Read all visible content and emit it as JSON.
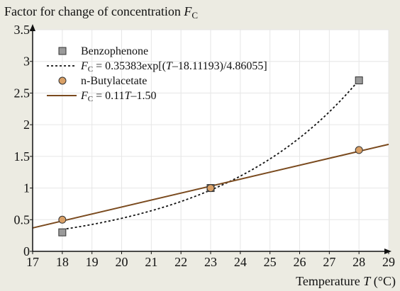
{
  "chart_data": {
    "type": "scatter",
    "title": "",
    "ylabel": "Factor for change of concentration F",
    "ylabel_sub": "C",
    "xlabel": "Temperature T (°C)",
    "xlim": [
      17,
      29
    ],
    "ylim": [
      0,
      3.5
    ],
    "x_ticks": [
      17,
      18,
      19,
      20,
      21,
      22,
      23,
      24,
      25,
      26,
      27,
      28,
      29
    ],
    "y_ticks": [
      0,
      0.5,
      1,
      1.5,
      2,
      2.5,
      3,
      3.5
    ],
    "grid": true,
    "legend_position": "top-left",
    "series": [
      {
        "name": "Benzophenone",
        "kind": "points",
        "marker": "square",
        "color": "#9a9a9a",
        "x": [
          18,
          23,
          28
        ],
        "y": [
          0.3,
          1.0,
          2.7
        ]
      },
      {
        "name": "F_C = 0.35383exp[(T–18.11193)/4.86055]",
        "kind": "fit-curve",
        "style": "dotted",
        "color": "#111111",
        "formula": {
          "a": 0.35383,
          "t0": 18.11193,
          "k": 4.86055
        },
        "x_range": [
          18,
          28
        ]
      },
      {
        "name": "n-Butylacetate",
        "kind": "points",
        "marker": "circle",
        "color": "#d9a066",
        "x": [
          18,
          23,
          28
        ],
        "y": [
          0.5,
          1.0,
          1.6
        ]
      },
      {
        "name": "F_C = 0.11T–1.50",
        "kind": "fit-line",
        "style": "solid",
        "color": "#7a4a1e",
        "formula": {
          "slope": 0.11,
          "intercept": -1.5
        },
        "x_range": [
          17,
          29
        ]
      }
    ],
    "legend": {
      "items": [
        {
          "label": "Benzophenone",
          "symbol": "square"
        },
        {
          "prefix": "F",
          "sub": "C",
          "label": " = 0.35383exp[(",
          "italic": "T",
          "rest": "–18.11193)/4.86055]",
          "symbol": "dotted"
        },
        {
          "label": "n-Butylacetate",
          "symbol": "circle"
        },
        {
          "prefix": "F",
          "sub": "C",
          "label": " = 0.11",
          "italic": "T",
          "rest": "–1.50",
          "symbol": "line"
        }
      ]
    }
  }
}
